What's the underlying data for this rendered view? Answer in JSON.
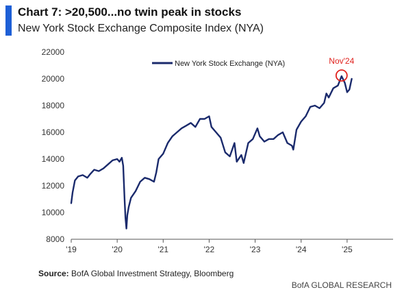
{
  "header": {
    "title": "Chart 7: >20,500...no twin peak in stocks",
    "subtitle": "New York Stock Exchange Composite Index (NYA)"
  },
  "footer": {
    "source_label": "Source:",
    "source_text": " BofA Global Investment Strategy, Bloomberg",
    "brand": "BofA GLOBAL RESEARCH"
  },
  "colors": {
    "series": "#1a2a6c",
    "accent_bar": "#1d5fd6",
    "annotation": "#e0211d",
    "axis": "#555555"
  },
  "chart_data": {
    "type": "line",
    "title": "New York Stock Exchange Composite Index (NYA)",
    "xlabel": "",
    "ylabel": "",
    "ylim": [
      8000,
      22000
    ],
    "yticks": [
      8000,
      10000,
      12000,
      14000,
      16000,
      18000,
      20000,
      22000
    ],
    "ytick_labels": [
      "8000",
      "10000",
      "12000",
      "14000",
      "16000",
      "18000",
      "20000",
      "22000"
    ],
    "xlim": [
      2019.0,
      2026.0
    ],
    "xticks": [
      2019,
      2020,
      2021,
      2022,
      2023,
      2024,
      2025
    ],
    "xtick_labels": [
      "'19",
      "'20",
      "'21",
      "'22",
      "'23",
      "'24",
      "'25"
    ],
    "grid": false,
    "legend_position": "top-center",
    "series": [
      {
        "name": "New York Stock Exchange (NYA)",
        "x": [
          2019.0,
          2019.03,
          2019.08,
          2019.15,
          2019.25,
          2019.35,
          2019.42,
          2019.5,
          2019.6,
          2019.7,
          2019.8,
          2019.9,
          2020.0,
          2020.05,
          2020.1,
          2020.13,
          2020.16,
          2020.18,
          2020.2,
          2020.22,
          2020.25,
          2020.3,
          2020.4,
          2020.5,
          2020.6,
          2020.7,
          2020.8,
          2020.85,
          2020.9,
          2021.0,
          2021.1,
          2021.2,
          2021.3,
          2021.4,
          2021.5,
          2021.6,
          2021.7,
          2021.8,
          2021.9,
          2022.0,
          2022.05,
          2022.15,
          2022.25,
          2022.35,
          2022.45,
          2022.55,
          2022.6,
          2022.7,
          2022.75,
          2022.85,
          2022.95,
          2023.05,
          2023.1,
          2023.2,
          2023.3,
          2023.4,
          2023.5,
          2023.6,
          2023.7,
          2023.8,
          2023.83,
          2023.9,
          2024.0,
          2024.1,
          2024.2,
          2024.3,
          2024.4,
          2024.5,
          2024.55,
          2024.6,
          2024.7,
          2024.8,
          2024.88,
          2024.95,
          2025.0,
          2025.05,
          2025.1
        ],
        "values": [
          10700,
          11500,
          12400,
          12700,
          12800,
          12600,
          12900,
          13200,
          13100,
          13300,
          13600,
          13900,
          14000,
          13800,
          14100,
          13500,
          11000,
          9600,
          8800,
          9800,
          10400,
          11100,
          11600,
          12300,
          12600,
          12500,
          12300,
          13000,
          14000,
          14400,
          15200,
          15700,
          16000,
          16300,
          16500,
          16700,
          16400,
          17000,
          17000,
          17200,
          16400,
          16000,
          15600,
          14500,
          14200,
          15200,
          13800,
          14300,
          13700,
          15200,
          15500,
          16300,
          15700,
          15300,
          15500,
          15500,
          15800,
          16000,
          15200,
          15000,
          14700,
          16200,
          16800,
          17200,
          17900,
          18000,
          17800,
          18200,
          18900,
          18600,
          19300,
          19500,
          20200,
          19700,
          19000,
          19200,
          20000
        ]
      }
    ],
    "annotations": [
      {
        "label": "Nov'24",
        "x": 2024.88,
        "y": 20250,
        "marker": "circle"
      }
    ]
  }
}
